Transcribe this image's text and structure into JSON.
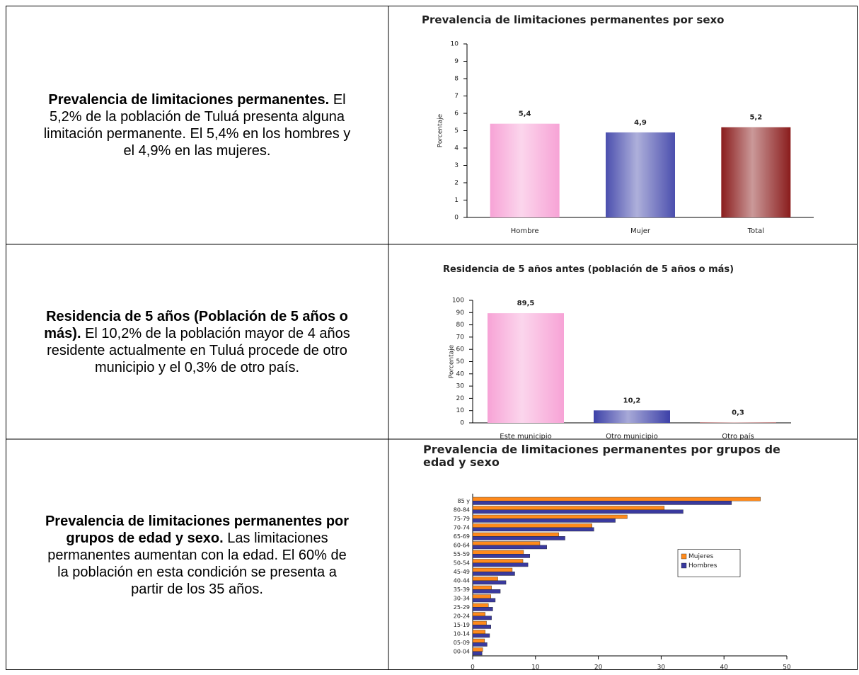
{
  "rows": [
    {
      "heading": "Prevalencia de limitaciones permanentes.",
      "body": "El 5,2% de la población de Tuluá presenta alguna limitación permanente. El 5,4% en los hombres y el 4,9% en las mujeres.",
      "chart": {
        "type": "bar",
        "title": "Prevalencia de limitaciones permanentes por sexo",
        "ylabel": "Porcentaje",
        "categories": [
          "Hombre",
          "Mujer",
          "Total"
        ],
        "values": [
          5.4,
          4.9,
          5.2
        ],
        "value_labels": [
          "5,4",
          "4,9",
          "5,2"
        ],
        "colors": [
          "#f7a3d6",
          "#4b4fae",
          "#8a1c1c"
        ],
        "ylim": [
          0,
          10
        ],
        "yticks": [
          0,
          1,
          2,
          3,
          4,
          5,
          6,
          7,
          8,
          9,
          10
        ],
        "grid": false
      }
    },
    {
      "heading": "Residencia de 5 años (Población de 5 años o más).",
      "body": "El 10,2% de la población mayor de 4 años residente actualmente en Tuluá procede de otro municipio y el 0,3% de otro país.",
      "chart": {
        "type": "bar",
        "title": "Residencia de 5 años antes (población de 5 años o más)",
        "ylabel": "Porcentaje",
        "categories": [
          "Este municipio",
          "Otro  municipio",
          "Otro país"
        ],
        "values": [
          89.5,
          10.2,
          0.3
        ],
        "value_labels": [
          "89,5",
          "10,2",
          "0,3"
        ],
        "colors": [
          "#f7a3d6",
          "#3d41a8",
          "#8a1c1c"
        ],
        "ylim": [
          0,
          100
        ],
        "yticks": [
          0,
          10,
          20,
          30,
          40,
          50,
          60,
          70,
          80,
          90,
          100
        ],
        "grid": false
      }
    },
    {
      "heading": "Prevalencia de limitaciones permanentes por grupos de edad y sexo.",
      "body": "Las limitaciones permanentes aumentan  con la edad. El 60% de la población en esta condición se presenta a partir de los 35 años.",
      "chart": {
        "type": "horizontal_bar",
        "title": "Prevalencia de limitaciones permanentes por grupos de edad y sexo",
        "categories": [
          "85 y",
          "80-84",
          "75-79",
          "70-74",
          "65-69",
          "60-64",
          "55-59",
          "50-54",
          "45-49",
          "40-44",
          "35-39",
          "30-34",
          "25-29",
          "20-24",
          "15-19",
          "10-14",
          "05-09",
          "00-04"
        ],
        "series": [
          {
            "name": "Mujeres",
            "color": "#ff8a1c",
            "values": [
              45.8,
              30.5,
              24.6,
              19.0,
              13.7,
              10.7,
              8.1,
              8.0,
              6.3,
              4.0,
              3.0,
              2.9,
              2.5,
              2.0,
              2.2,
              2.0,
              1.9,
              1.6
            ]
          },
          {
            "name": "Hombres",
            "color": "#3a3a9e",
            "values": [
              41.2,
              33.5,
              22.7,
              19.3,
              14.7,
              11.8,
              9.1,
              8.8,
              6.7,
              5.3,
              4.4,
              3.6,
              3.2,
              3.0,
              2.9,
              2.7,
              2.3,
              1.5
            ]
          }
        ],
        "xlim": [
          0,
          50
        ],
        "xticks": [
          0,
          10,
          20,
          30,
          40,
          50
        ],
        "legend": "right",
        "grid": false
      }
    }
  ]
}
